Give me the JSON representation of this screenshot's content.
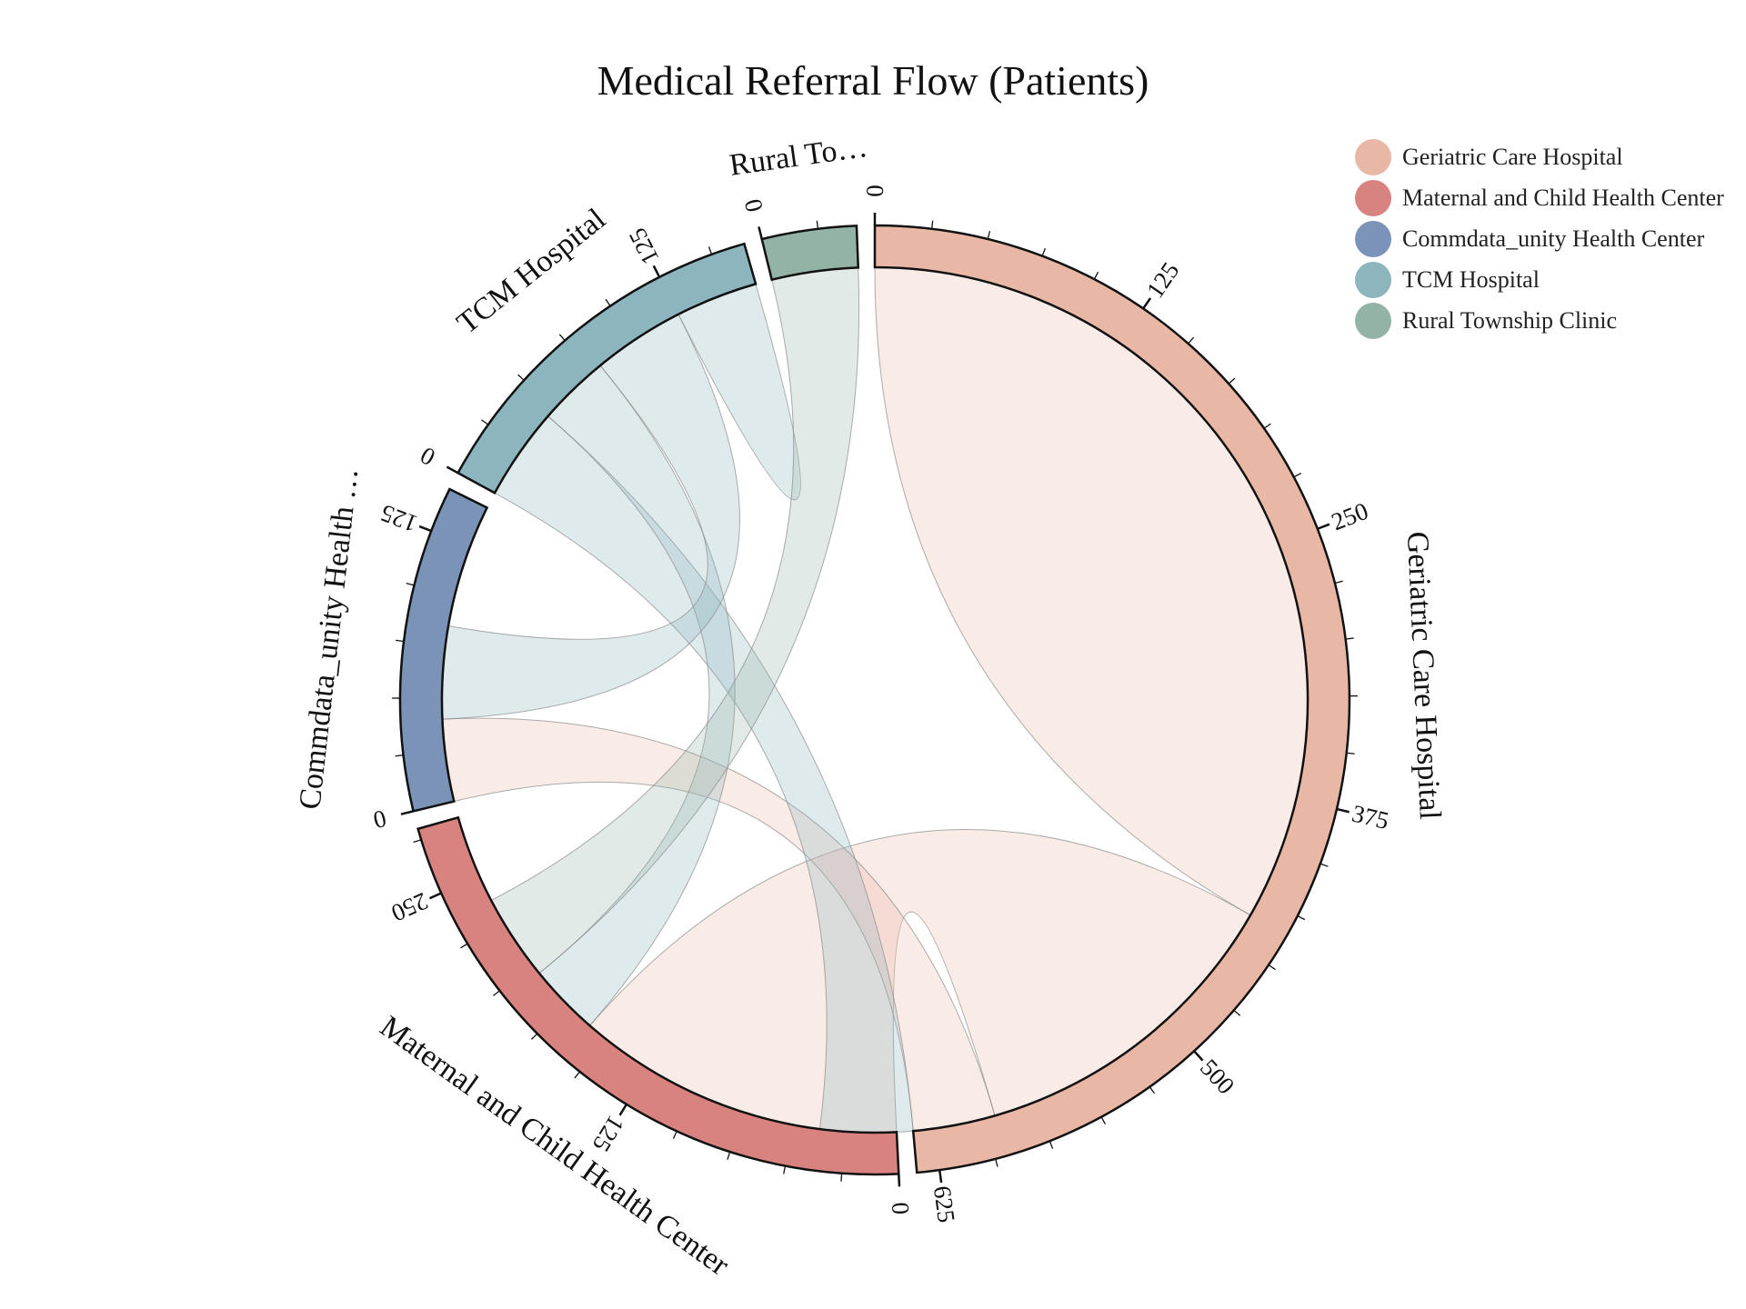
{
  "chart_data": {
    "type": "chord",
    "title": "Medical Referral Flow (Patients)",
    "groups": [
      {
        "name": "Geriatric Care Hospital",
        "label": "Geriatric Care Hospital",
        "color": "#E8B7A6",
        "total": 635
      },
      {
        "name": "Maternal and Child Health Center",
        "label": "Maternal and Child Health Center",
        "color": "#D98380",
        "total": 280
      },
      {
        "name": "Commdata_unity Health Center",
        "label": "Commdata_unity Health …",
        "color": "#7A93B7",
        "total": 145
      },
      {
        "name": "TCM Hospital",
        "label": "TCM Hospital",
        "color": "#8CB5BE",
        "total": 165
      },
      {
        "name": "Rural Township Clinic",
        "label": "Rural To…",
        "color": "#92B3A5",
        "total": 42
      }
    ],
    "flows": [
      {
        "group": 0,
        "target": 0,
        "value": 435
      },
      {
        "group": 0,
        "target": 1,
        "value": 160
      },
      {
        "group": 0,
        "target": 2,
        "value": 40
      },
      {
        "group": 3,
        "target": 0,
        "value": 45
      },
      {
        "group": 3,
        "target": 1,
        "value": 35
      },
      {
        "group": 3,
        "target": 2,
        "value": 45
      },
      {
        "group": 3,
        "target": 3,
        "value": 40
      },
      {
        "group": 4,
        "target": 1,
        "value": 42
      }
    ],
    "tick_step": 125,
    "legend_position": "top-right"
  }
}
